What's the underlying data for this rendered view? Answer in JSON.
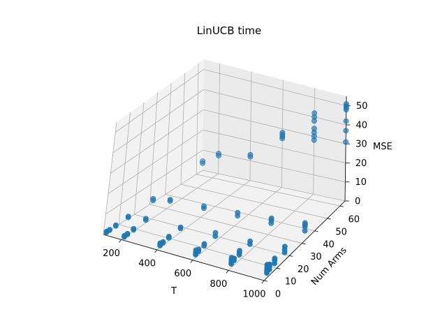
{
  "chart_data": {
    "type": "scatter3d",
    "title": "LinUCB time",
    "xlabel": "T",
    "ylabel": "Num Arms",
    "zlabel": "MSE",
    "xlim": [
      100,
      1000
    ],
    "ylim": [
      0,
      64
    ],
    "zlim": [
      0,
      55
    ],
    "xticks": [
      200,
      400,
      600,
      800,
      1000
    ],
    "yticks": [
      0,
      10,
      20,
      30,
      40,
      50,
      60
    ],
    "zticks": [
      0,
      10,
      20,
      30,
      40,
      50
    ],
    "color": "#1f77b4",
    "grid": true,
    "points": [
      {
        "x": 100,
        "y": 2,
        "z": 0.1
      },
      {
        "x": 100,
        "y": 2,
        "z": 0.2
      },
      {
        "x": 100,
        "y": 2,
        "z": 0.3
      },
      {
        "x": 100,
        "y": 2,
        "z": 0.5
      },
      {
        "x": 100,
        "y": 4,
        "z": 0.2
      },
      {
        "x": 100,
        "y": 4,
        "z": 0.4
      },
      {
        "x": 100,
        "y": 8,
        "z": 0.3
      },
      {
        "x": 100,
        "y": 8,
        "z": 0.6
      },
      {
        "x": 100,
        "y": 16,
        "z": 0.5
      },
      {
        "x": 100,
        "y": 16,
        "z": 1.0
      },
      {
        "x": 100,
        "y": 32,
        "z": 1.0
      },
      {
        "x": 100,
        "y": 32,
        "z": 1.8
      },
      {
        "x": 100,
        "y": 64,
        "z": 3.5
      },
      {
        "x": 100,
        "y": 64,
        "z": 4.5
      },
      {
        "x": 200,
        "y": 2,
        "z": 0.3
      },
      {
        "x": 200,
        "y": 2,
        "z": 0.6
      },
      {
        "x": 200,
        "y": 2,
        "z": 0.9
      },
      {
        "x": 200,
        "y": 4,
        "z": 0.5
      },
      {
        "x": 200,
        "y": 4,
        "z": 0.9
      },
      {
        "x": 200,
        "y": 8,
        "z": 0.8
      },
      {
        "x": 200,
        "y": 8,
        "z": 1.3
      },
      {
        "x": 200,
        "y": 16,
        "z": 1.5
      },
      {
        "x": 200,
        "y": 16,
        "z": 2.2
      },
      {
        "x": 200,
        "y": 32,
        "z": 2.8
      },
      {
        "x": 200,
        "y": 32,
        "z": 3.5
      },
      {
        "x": 200,
        "y": 64,
        "z": 9.0
      },
      {
        "x": 200,
        "y": 64,
        "z": 10.0
      },
      {
        "x": 400,
        "y": 2,
        "z": 1.0
      },
      {
        "x": 400,
        "y": 2,
        "z": 1.6
      },
      {
        "x": 400,
        "y": 2,
        "z": 2.2
      },
      {
        "x": 400,
        "y": 4,
        "z": 1.2
      },
      {
        "x": 400,
        "y": 4,
        "z": 1.8
      },
      {
        "x": 400,
        "y": 8,
        "z": 1.6
      },
      {
        "x": 400,
        "y": 8,
        "z": 2.3
      },
      {
        "x": 400,
        "y": 16,
        "z": 2.0
      },
      {
        "x": 400,
        "y": 16,
        "z": 2.6
      },
      {
        "x": 400,
        "y": 32,
        "z": 3.5
      },
      {
        "x": 400,
        "y": 32,
        "z": 4.5
      },
      {
        "x": 400,
        "y": 64,
        "z": 12.0
      },
      {
        "x": 400,
        "y": 64,
        "z": 13.0
      },
      {
        "x": 600,
        "y": 2,
        "z": 1.5
      },
      {
        "x": 600,
        "y": 2,
        "z": 2.2
      },
      {
        "x": 600,
        "y": 2,
        "z": 3.0
      },
      {
        "x": 600,
        "y": 2,
        "z": 3.8
      },
      {
        "x": 600,
        "y": 4,
        "z": 2.0
      },
      {
        "x": 600,
        "y": 4,
        "z": 3.0
      },
      {
        "x": 600,
        "y": 8,
        "z": 2.5
      },
      {
        "x": 600,
        "y": 8,
        "z": 3.5
      },
      {
        "x": 600,
        "y": 16,
        "z": 2.8
      },
      {
        "x": 600,
        "y": 16,
        "z": 4.5
      },
      {
        "x": 600,
        "y": 32,
        "z": 4.0
      },
      {
        "x": 600,
        "y": 32,
        "z": 5.5
      },
      {
        "x": 600,
        "y": 64,
        "z": 25.0
      },
      {
        "x": 600,
        "y": 64,
        "z": 26.0
      },
      {
        "x": 600,
        "y": 64,
        "z": 27.0
      },
      {
        "x": 600,
        "y": 64,
        "z": 28.0
      },
      {
        "x": 800,
        "y": 2,
        "z": 2.0
      },
      {
        "x": 800,
        "y": 2,
        "z": 3.0
      },
      {
        "x": 800,
        "y": 2,
        "z": 4.0
      },
      {
        "x": 800,
        "y": 2,
        "z": 5.0
      },
      {
        "x": 800,
        "y": 4,
        "z": 2.5
      },
      {
        "x": 800,
        "y": 4,
        "z": 3.5
      },
      {
        "x": 800,
        "y": 8,
        "z": 3.0
      },
      {
        "x": 800,
        "y": 8,
        "z": 4.0
      },
      {
        "x": 800,
        "y": 8,
        "z": 5.0
      },
      {
        "x": 800,
        "y": 16,
        "z": 3.5
      },
      {
        "x": 800,
        "y": 16,
        "z": 5.0
      },
      {
        "x": 800,
        "y": 32,
        "z": 4.5
      },
      {
        "x": 800,
        "y": 32,
        "z": 6.0
      },
      {
        "x": 800,
        "y": 32,
        "z": 7.0
      },
      {
        "x": 800,
        "y": 64,
        "z": 28.0
      },
      {
        "x": 800,
        "y": 64,
        "z": 30.0
      },
      {
        "x": 800,
        "y": 64,
        "z": 32.0
      },
      {
        "x": 800,
        "y": 64,
        "z": 34.0
      },
      {
        "x": 800,
        "y": 64,
        "z": 38.0
      },
      {
        "x": 800,
        "y": 64,
        "z": 40.0
      },
      {
        "x": 800,
        "y": 64,
        "z": 42.0
      },
      {
        "x": 1000,
        "y": 2,
        "z": 2.5
      },
      {
        "x": 1000,
        "y": 2,
        "z": 3.5
      },
      {
        "x": 1000,
        "y": 2,
        "z": 4.5
      },
      {
        "x": 1000,
        "y": 2,
        "z": 5.5
      },
      {
        "x": 1000,
        "y": 2,
        "z": 6.5
      },
      {
        "x": 1000,
        "y": 4,
        "z": 3.0
      },
      {
        "x": 1000,
        "y": 4,
        "z": 4.5
      },
      {
        "x": 1000,
        "y": 4,
        "z": 5.5
      },
      {
        "x": 1000,
        "y": 8,
        "z": 3.5
      },
      {
        "x": 1000,
        "y": 8,
        "z": 5.0
      },
      {
        "x": 1000,
        "y": 8,
        "z": 6.0
      },
      {
        "x": 1000,
        "y": 16,
        "z": 4.0
      },
      {
        "x": 1000,
        "y": 16,
        "z": 5.5
      },
      {
        "x": 1000,
        "y": 16,
        "z": 7.0
      },
      {
        "x": 1000,
        "y": 32,
        "z": 5.0
      },
      {
        "x": 1000,
        "y": 32,
        "z": 7.0
      },
      {
        "x": 1000,
        "y": 32,
        "z": 8.0
      },
      {
        "x": 1000,
        "y": 32,
        "z": 9.0
      },
      {
        "x": 1000,
        "y": 64,
        "z": 31.0
      },
      {
        "x": 1000,
        "y": 64,
        "z": 37.0
      },
      {
        "x": 1000,
        "y": 64,
        "z": 42.0
      },
      {
        "x": 1000,
        "y": 64,
        "z": 48.0
      },
      {
        "x": 1000,
        "y": 64,
        "z": 49.0
      },
      {
        "x": 1000,
        "y": 64,
        "z": 50.0
      },
      {
        "x": 1000,
        "y": 64,
        "z": 51.0
      }
    ]
  }
}
